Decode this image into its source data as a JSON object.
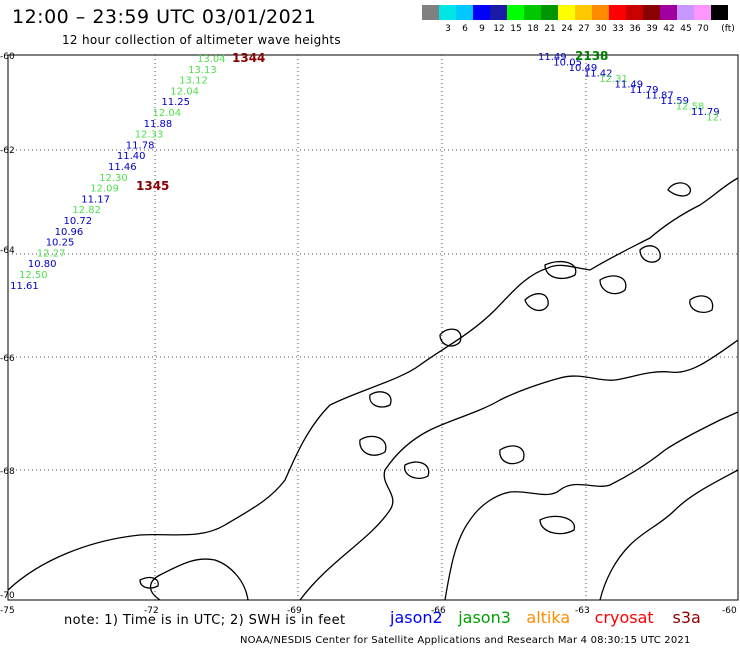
{
  "header": {
    "title": "12:00 – 23:59 UTC 03/01/2021",
    "subtitle": "12 hour collection of altimeter wave heights"
  },
  "color_scale": {
    "unit": "(ft)",
    "bins": [
      {
        "label": "",
        "color": "#808080"
      },
      {
        "label": "3",
        "color": "#00e5e5"
      },
      {
        "label": "6",
        "color": "#00c8ff"
      },
      {
        "label": "9",
        "color": "#0000ff"
      },
      {
        "label": "12",
        "color": "#1a1aa6"
      },
      {
        "label": "15",
        "color": "#00ff00"
      },
      {
        "label": "18",
        "color": "#00c800"
      },
      {
        "label": "21",
        "color": "#009600"
      },
      {
        "label": "24",
        "color": "#ffff00"
      },
      {
        "label": "27",
        "color": "#ffc800"
      },
      {
        "label": "30",
        "color": "#ff8c00"
      },
      {
        "label": "33",
        "color": "#ff0000"
      },
      {
        "label": "36",
        "color": "#c80000"
      },
      {
        "label": "39",
        "color": "#8b0000"
      },
      {
        "label": "42",
        "color": "#a000a0"
      },
      {
        "label": "45",
        "color": "#c896ff"
      },
      {
        "label": "70",
        "color": "#ff96ff"
      },
      {
        "label": "",
        "color": "#000000"
      }
    ]
  },
  "axes": {
    "lat_labels": [
      "-60",
      "-62",
      "-64",
      "-66",
      "-68",
      "-70"
    ],
    "lon_labels": [
      "-75",
      "-72",
      "-69",
      "-66",
      "-63",
      "-60"
    ]
  },
  "tracks": {
    "track_a": {
      "id_top": "1344",
      "id_bottom": "1345",
      "values": [
        "13.04",
        "13.13",
        "13.12",
        "12.04",
        "11.25",
        "12.04",
        "11.88",
        "12.33",
        "11.78",
        "11.40",
        "11.46",
        "12.30",
        "12.09",
        "11.17",
        "12.82",
        "10.72",
        "10.96",
        "10.25",
        "12.27",
        "10.80",
        "12.50",
        "11.61"
      ]
    },
    "track_b": {
      "id": "2138",
      "values": [
        "11.49",
        "10.05",
        "10.49",
        "11.42",
        "12.31",
        "11.49",
        "11.79",
        "11.87",
        "11.59",
        "12.58",
        "11.79",
        "12."
      ]
    }
  },
  "footer": {
    "note": "note: 1) Time is in UTC; 2) SWH is in feet",
    "satellites": [
      {
        "name": "jason2",
        "color": "#0000ff"
      },
      {
        "name": "jason3",
        "color": "#00a000"
      },
      {
        "name": "altika",
        "color": "#ff8c00"
      },
      {
        "name": "cryosat",
        "color": "#ff0000"
      },
      {
        "name": "s3a",
        "color": "#8b0000"
      }
    ],
    "credit": "NOAA/NESDIS Center for Satellite Applications and Research    Mar  4 08:30:15 UTC 2021"
  },
  "colors": {
    "blue": "#0000c8",
    "green": "#50e050",
    "pass_id_red": "#8b0000",
    "pass_id_green": "#008000"
  }
}
